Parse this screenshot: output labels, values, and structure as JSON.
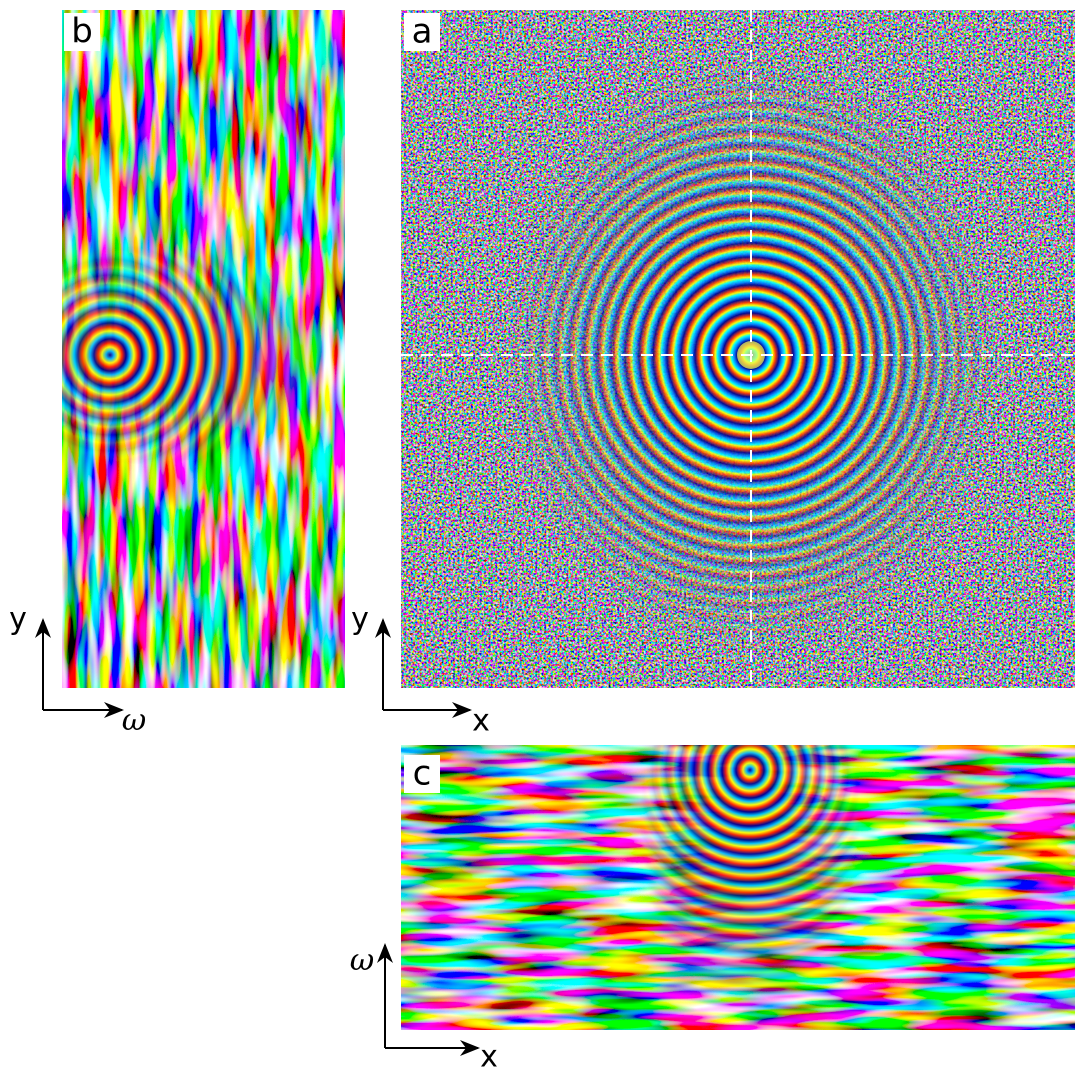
{
  "panels": [
    {
      "label": "b",
      "axes": {
        "vertical": "y",
        "horizontal": "ω"
      }
    },
    {
      "label": "a",
      "axes": {
        "vertical": "y",
        "horizontal": "x"
      }
    },
    {
      "label": "c",
      "axes": {
        "vertical": "ω",
        "horizontal": "x"
      }
    }
  ]
}
